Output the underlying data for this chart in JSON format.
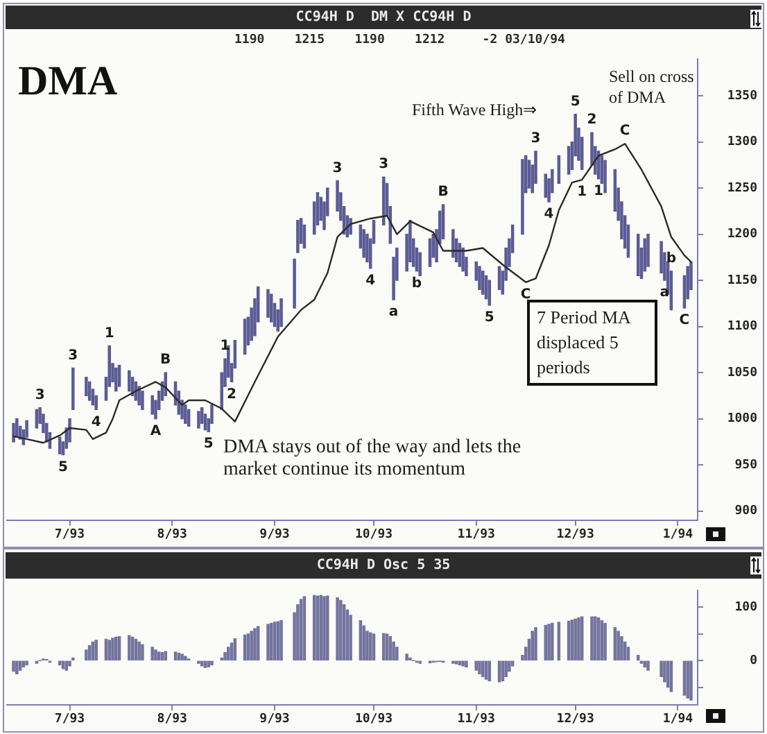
{
  "chart_data": [
    {
      "type": "bar",
      "title": "DMA",
      "subtitle": "CC94H D  DM X CC94H D",
      "annotations": [
        "1190    1215    1190    1212     -2 03/10/94",
        "Fifth Wave High⇒",
        "Sell on cross of DMA",
        "DMA stays out of the way and lets the market continue its momentum",
        "7 Period MA displaced 5 periods",
        {
          "text": "3",
          "x": "1993-06-22",
          "y": 1012
        },
        {
          "text": "5",
          "x": "1993-06-29",
          "y": 961
        },
        {
          "text": "3",
          "x": "1993-07-02",
          "y": 1055
        },
        {
          "text": "4",
          "x": "1993-07-09",
          "y": 1010
        },
        {
          "text": "1",
          "x": "1993-07-13",
          "y": 1079
        },
        {
          "text": "A",
          "x": "1993-07-27",
          "y": 1000
        },
        {
          "text": "B",
          "x": "1993-07-30",
          "y": 1050
        },
        {
          "text": "5",
          "x": "1993-08-12",
          "y": 986
        },
        {
          "text": "1",
          "x": "1993-08-17",
          "y": 1065
        },
        {
          "text": "2",
          "x": "1993-08-19",
          "y": 1040
        },
        {
          "text": "3",
          "x": "1993-09-20",
          "y": 1258
        },
        {
          "text": "4",
          "x": "1993-09-30",
          "y": 1163
        },
        {
          "text": "3",
          "x": "1993-10-04",
          "y": 1262
        },
        {
          "text": "a",
          "x": "1993-10-07",
          "y": 1129
        },
        {
          "text": "b",
          "x": "1993-10-14",
          "y": 1160
        },
        {
          "text": "B",
          "x": "1993-10-22",
          "y": 1232
        },
        {
          "text": "5",
          "x": "1993-11-05",
          "y": 1123
        },
        {
          "text": "C",
          "x": "1993-11-16",
          "y": 1148
        },
        {
          "text": "3",
          "x": "1993-11-19",
          "y": 1290
        },
        {
          "text": "4",
          "x": "1993-11-23",
          "y": 1235
        },
        {
          "text": "5",
          "x": "1993-12-01",
          "y": 1330
        },
        {
          "text": "1",
          "x": "1993-12-03",
          "y": 1259
        },
        {
          "text": "2",
          "x": "1993-12-06",
          "y": 1310
        },
        {
          "text": "1",
          "x": "1993-12-08",
          "y": 1260
        },
        {
          "text": "C",
          "x": "1993-12-16",
          "y": 1298
        },
        {
          "text": "a",
          "x": "1993-12-28",
          "y": 1150
        },
        {
          "text": "b",
          "x": "1993-12-30",
          "y": 1160
        },
        {
          "text": "C",
          "x": "1994-01-03",
          "y": 1120
        }
      ],
      "series": [
        {
          "color": "#5b5b95",
          "x": [
            "1993-06-14",
            "1993-06-15",
            "1993-06-16",
            "1993-06-17",
            "1993-06-18",
            "1993-06-21",
            "1993-06-22",
            "1993-06-23",
            "1993-06-24",
            "1993-06-25",
            "1993-06-28",
            "1993-06-29",
            "1993-06-30",
            "1993-07-01",
            "1993-07-02",
            "1993-07-06",
            "1993-07-07",
            "1993-07-08",
            "1993-07-09",
            "1993-07-12",
            "1993-07-13",
            "1993-07-14",
            "1993-07-15",
            "1993-07-16",
            "1993-07-19",
            "1993-07-20",
            "1993-07-21",
            "1993-07-22",
            "1993-07-23",
            "1993-07-26",
            "1993-07-27",
            "1993-07-28",
            "1993-07-29",
            "1993-07-30",
            "1993-08-02",
            "1993-08-03",
            "1993-08-04",
            "1993-08-05",
            "1993-08-06",
            "1993-08-09",
            "1993-08-10",
            "1993-08-11",
            "1993-08-12",
            "1993-08-13",
            "1993-08-16",
            "1993-08-17",
            "1993-08-18",
            "1993-08-19",
            "1993-08-20",
            "1993-08-23",
            "1993-08-24",
            "1993-08-25",
            "1993-08-26",
            "1993-08-27",
            "1993-08-30",
            "1993-08-31",
            "1993-09-01",
            "1993-09-02",
            "1993-09-03",
            "1993-09-07",
            "1993-09-08",
            "1993-09-09",
            "1993-09-10",
            "1993-09-13",
            "1993-09-14",
            "1993-09-15",
            "1993-09-16",
            "1993-09-17",
            "1993-09-20",
            "1993-09-21",
            "1993-09-22",
            "1993-09-23",
            "1993-09-24",
            "1993-09-27",
            "1993-09-28",
            "1993-09-29",
            "1993-09-30",
            "1993-10-01",
            "1993-10-04",
            "1993-10-05",
            "1993-10-06",
            "1993-10-07",
            "1993-10-08",
            "1993-10-11",
            "1993-10-12",
            "1993-10-13",
            "1993-10-14",
            "1993-10-15",
            "1993-10-18",
            "1993-10-19",
            "1993-10-20",
            "1993-10-21",
            "1993-10-22",
            "1993-10-25",
            "1993-10-26",
            "1993-10-27",
            "1993-10-28",
            "1993-10-29",
            "1993-11-01",
            "1993-11-02",
            "1993-11-03",
            "1993-11-04",
            "1993-11-05",
            "1993-11-08",
            "1993-11-09",
            "1993-11-10",
            "1993-11-11",
            "1993-11-12",
            "1993-11-15",
            "1993-11-16",
            "1993-11-17",
            "1993-11-18",
            "1993-11-19",
            "1993-11-22",
            "1993-11-23",
            "1993-11-24",
            "1993-11-26",
            "1993-11-29",
            "1993-11-30",
            "1993-12-01",
            "1993-12-02",
            "1993-12-03",
            "1993-12-06",
            "1993-12-07",
            "1993-12-08",
            "1993-12-09",
            "1993-12-10",
            "1993-12-13",
            "1993-12-14",
            "1993-12-15",
            "1993-12-16",
            "1993-12-17",
            "1993-12-20",
            "1993-12-21",
            "1993-12-22",
            "1993-12-23",
            "1993-12-27",
            "1993-12-28",
            "1993-12-29",
            "1993-12-30",
            "1994-01-03",
            "1994-01-04",
            "1994-01-05"
          ],
          "base": [
            975,
            980,
            978,
            972,
            980,
            990,
            995,
            985,
            975,
            968,
            962,
            961,
            968,
            975,
            1010,
            1025,
            1020,
            1015,
            1010,
            1020,
            1035,
            1040,
            1030,
            1035,
            1030,
            1025,
            1020,
            1015,
            1010,
            1005,
            1000,
            1010,
            1020,
            1025,
            1015,
            1005,
            1000,
            995,
            992,
            990,
            995,
            988,
            986,
            995,
            1010,
            1035,
            1045,
            1040,
            1055,
            1070,
            1080,
            1085,
            1090,
            1105,
            1110,
            1105,
            1100,
            1095,
            1100,
            1120,
            1180,
            1190,
            1185,
            1200,
            1210,
            1215,
            1205,
            1220,
            1225,
            1215,
            1200,
            1197,
            1200,
            1185,
            1175,
            1170,
            1163,
            1190,
            1210,
            1220,
            1190,
            1129,
            1150,
            1160,
            1170,
            1165,
            1160,
            1155,
            1165,
            1175,
            1170,
            1190,
            1195,
            1175,
            1170,
            1165,
            1160,
            1155,
            1150,
            1140,
            1135,
            1130,
            1123,
            1140,
            1135,
            1150,
            1165,
            1180,
            1200,
            1245,
            1250,
            1245,
            1255,
            1240,
            1235,
            1245,
            1255,
            1265,
            1270,
            1285,
            1280,
            1270,
            1275,
            1265,
            1260,
            1255,
            1245,
            1225,
            1215,
            1195,
            1185,
            1175,
            1155,
            1152,
            1160,
            1165,
            1158,
            1150,
            1135,
            1118,
            1120,
            1130,
            1140
          ],
          "values": [
            20,
            20,
            14,
            16,
            18,
            20,
            17,
            20,
            20,
            17,
            18,
            14,
            22,
            25,
            45,
            20,
            20,
            17,
            15,
            25,
            44,
            20,
            25,
            23,
            22,
            20,
            20,
            20,
            20,
            20,
            20,
            20,
            20,
            25,
            25,
            25,
            20,
            20,
            18,
            18,
            17,
            17,
            14,
            20,
            40,
            30,
            34,
            20,
            30,
            38,
            30,
            35,
            40,
            38,
            30,
            30,
            25,
            23,
            30,
            53,
            35,
            27,
            25,
            35,
            35,
            25,
            30,
            30,
            33,
            30,
            30,
            23,
            17,
            25,
            30,
            30,
            32,
            25,
            52,
            35,
            40,
            46,
            35,
            40,
            45,
            30,
            25,
            25,
            30,
            25,
            35,
            35,
            37,
            30,
            25,
            25,
            25,
            20,
            20,
            25,
            25,
            25,
            27,
            25,
            25,
            35,
            30,
            30,
            81,
            40,
            30,
            30,
            35,
            25,
            25,
            25,
            30,
            30,
            30,
            45,
            35,
            35,
            35,
            30,
            30,
            30,
            35,
            45,
            35,
            40,
            35,
            35,
            45,
            33,
            35,
            35,
            34,
            30,
            35,
            42,
            35,
            35,
            30
          ]
        },
        {
          "type": "line",
          "color": "#2a2a2a",
          "x": [
            "1993-06-14",
            "1993-06-18",
            "1993-06-23",
            "1993-06-28",
            "1993-07-01",
            "1993-07-06",
            "1993-07-08",
            "1993-07-12",
            "1993-07-14",
            "1993-07-16",
            "1993-07-21",
            "1993-07-27",
            "1993-07-30",
            "1993-08-04",
            "1993-08-06",
            "1993-08-11",
            "1993-08-16",
            "1993-08-20",
            "1993-08-26",
            "1993-09-02",
            "1993-09-09",
            "1993-09-13",
            "1993-09-17",
            "1993-09-20",
            "1993-09-24",
            "1993-09-30",
            "1993-10-05",
            "1993-10-08",
            "1993-10-12",
            "1993-10-19",
            "1993-10-22",
            "1993-10-29",
            "1993-11-03",
            "1993-11-09",
            "1993-11-16",
            "1993-11-19",
            "1993-11-23",
            "1993-11-26",
            "1993-11-30",
            "1993-12-03",
            "1993-12-08",
            "1993-12-13",
            "1993-12-16",
            "1993-12-21",
            "1993-12-27",
            "1993-12-30",
            "1994-01-03",
            "1994-01-05"
          ],
          "values": [
            981,
            978,
            974,
            982,
            990,
            988,
            978,
            985,
            1000,
            1020,
            1030,
            1040,
            1034,
            1015,
            1020,
            1020,
            1011,
            997,
            1040,
            1089,
            1118,
            1129,
            1158,
            1197,
            1211,
            1217,
            1220,
            1200,
            1214,
            1202,
            1182,
            1182,
            1185,
            1167,
            1148,
            1152,
            1188,
            1226,
            1256,
            1259,
            1285,
            1292,
            1298,
            1270,
            1230,
            1197,
            1177,
            1170
          ]
        }
      ],
      "xlim": [
        "1993-06-12",
        "1994-01-07"
      ],
      "xticks": [
        {
          "value": "1993-07-01",
          "label": "7/93"
        },
        {
          "value": "1993-08-01",
          "label": "8/93"
        },
        {
          "value": "1993-09-01",
          "label": "9/93"
        },
        {
          "value": "1993-10-01",
          "label": "10/93"
        },
        {
          "value": "1993-11-01",
          "label": "11/93"
        },
        {
          "value": "1993-12-01",
          "label": "12/93"
        },
        {
          "value": "1994-01-01",
          "label": "1/94"
        }
      ],
      "ylim": [
        890,
        1390
      ],
      "yticks": [
        900,
        950,
        1000,
        1050,
        1100,
        1150,
        1200,
        1250,
        1300,
        1350
      ]
    },
    {
      "type": "bar",
      "title": "CC94H D Osc 5 35",
      "color": "#74749f",
      "x": [
        "1993-06-14",
        "1993-06-15",
        "1993-06-16",
        "1993-06-17",
        "1993-06-18",
        "1993-06-21",
        "1993-06-22",
        "1993-06-23",
        "1993-06-24",
        "1993-06-25",
        "1993-06-28",
        "1993-06-29",
        "1993-06-30",
        "1993-07-01",
        "1993-07-02",
        "1993-07-06",
        "1993-07-07",
        "1993-07-08",
        "1993-07-09",
        "1993-07-12",
        "1993-07-13",
        "1993-07-14",
        "1993-07-15",
        "1993-07-16",
        "1993-07-19",
        "1993-07-20",
        "1993-07-21",
        "1993-07-22",
        "1993-07-23",
        "1993-07-26",
        "1993-07-27",
        "1993-07-28",
        "1993-07-29",
        "1993-07-30",
        "1993-08-02",
        "1993-08-03",
        "1993-08-04",
        "1993-08-05",
        "1993-08-06",
        "1993-08-09",
        "1993-08-10",
        "1993-08-11",
        "1993-08-12",
        "1993-08-13",
        "1993-08-16",
        "1993-08-17",
        "1993-08-18",
        "1993-08-19",
        "1993-08-20",
        "1993-08-23",
        "1993-08-24",
        "1993-08-25",
        "1993-08-26",
        "1993-08-27",
        "1993-08-30",
        "1993-08-31",
        "1993-09-01",
        "1993-09-02",
        "1993-09-03",
        "1993-09-07",
        "1993-09-08",
        "1993-09-09",
        "1993-09-10",
        "1993-09-13",
        "1993-09-14",
        "1993-09-15",
        "1993-09-16",
        "1993-09-17",
        "1993-09-20",
        "1993-09-21",
        "1993-09-22",
        "1993-09-23",
        "1993-09-24",
        "1993-09-27",
        "1993-09-28",
        "1993-09-29",
        "1993-09-30",
        "1993-10-01",
        "1993-10-04",
        "1993-10-05",
        "1993-10-06",
        "1993-10-07",
        "1993-10-08",
        "1993-10-11",
        "1993-10-12",
        "1993-10-13",
        "1993-10-14",
        "1993-10-15",
        "1993-10-18",
        "1993-10-19",
        "1993-10-20",
        "1993-10-21",
        "1993-10-22",
        "1993-10-25",
        "1993-10-26",
        "1993-10-27",
        "1993-10-28",
        "1993-10-29",
        "1993-11-01",
        "1993-11-02",
        "1993-11-03",
        "1993-11-04",
        "1993-11-05",
        "1993-11-08",
        "1993-11-09",
        "1993-11-10",
        "1993-11-11",
        "1993-11-12",
        "1993-11-15",
        "1993-11-16",
        "1993-11-17",
        "1993-11-18",
        "1993-11-19",
        "1993-11-22",
        "1993-11-23",
        "1993-11-24",
        "1993-11-26",
        "1993-11-29",
        "1993-11-30",
        "1993-12-01",
        "1993-12-02",
        "1993-12-03",
        "1993-12-06",
        "1993-12-07",
        "1993-12-08",
        "1993-12-09",
        "1993-12-10",
        "1993-12-13",
        "1993-12-14",
        "1993-12-15",
        "1993-12-16",
        "1993-12-17",
        "1993-12-20",
        "1993-12-21",
        "1993-12-22",
        "1993-12-23",
        "1993-12-27",
        "1993-12-28",
        "1993-12-29",
        "1993-12-30",
        "1994-01-03",
        "1994-01-04",
        "1994-01-05"
      ],
      "values": [
        -20,
        -25,
        -18,
        -12,
        -8,
        -5,
        0,
        3,
        2,
        -3,
        -8,
        -15,
        -18,
        -10,
        5,
        20,
        28,
        35,
        38,
        40,
        38,
        42,
        44,
        45,
        47,
        44,
        40,
        35,
        30,
        25,
        20,
        16,
        15,
        17,
        16,
        14,
        12,
        8,
        3,
        -5,
        -10,
        -13,
        -12,
        -8,
        5,
        15,
        25,
        33,
        41,
        48,
        50,
        55,
        60,
        64,
        68,
        70,
        72,
        73,
        75,
        90,
        105,
        115,
        120,
        122,
        121,
        122,
        120,
        121,
        118,
        113,
        105,
        95,
        85,
        75,
        65,
        55,
        52,
        50,
        51,
        50,
        45,
        35,
        25,
        12,
        5,
        0,
        -3,
        -5,
        -4,
        -3,
        -2,
        -1,
        -3,
        -5,
        -6,
        -8,
        -10,
        -12,
        -18,
        -25,
        -30,
        -35,
        -38,
        -40,
        -38,
        -30,
        -20,
        -10,
        10,
        25,
        40,
        55,
        62,
        66,
        68,
        70,
        72,
        74,
        76,
        78,
        80,
        82,
        82,
        82,
        80,
        75,
        70,
        62,
        55,
        45,
        35,
        25,
        10,
        -5,
        -12,
        -18,
        -30,
        -40,
        -50,
        -58,
        -65,
        -70,
        -74
      ],
      "xlim": [
        "1993-06-12",
        "1994-01-07"
      ],
      "xticks": [
        {
          "value": "1993-07-01",
          "label": "7/93"
        },
        {
          "value": "1993-08-01",
          "label": "8/93"
        },
        {
          "value": "1993-09-01",
          "label": "9/93"
        },
        {
          "value": "1993-10-01",
          "label": "10/93"
        },
        {
          "value": "1993-11-01",
          "label": "11/93"
        },
        {
          "value": "1993-12-01",
          "label": "12/93"
        },
        {
          "value": "1994-01-01",
          "label": "1/94"
        }
      ],
      "ylim": [
        -83,
        132
      ],
      "yticks": [
        {
          "value": -50,
          "label": null
        },
        0,
        {
          "value": 50,
          "label": null
        },
        100
      ]
    }
  ]
}
